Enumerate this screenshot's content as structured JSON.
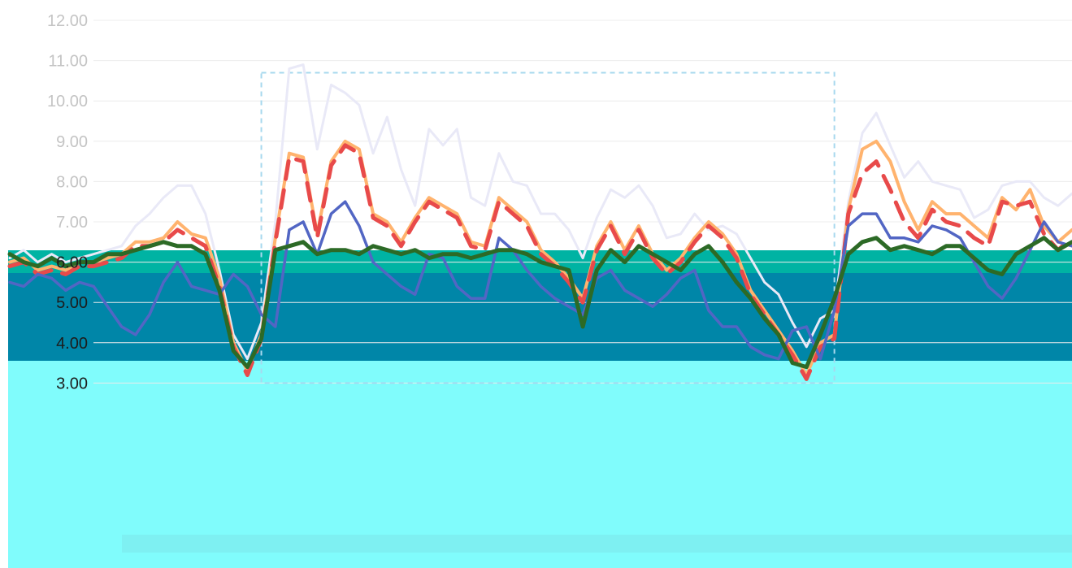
{
  "chart_data": {
    "type": "line",
    "title": "",
    "xlabel": "",
    "ylabel": "",
    "ylim": [
      2.5,
      12.2
    ],
    "yticks": [
      "3.00",
      "4.00",
      "5.00",
      "6.00",
      "7.00",
      "8.00",
      "9.00",
      "10.00",
      "11.00",
      "12.00"
    ],
    "grid": true,
    "legend": "none",
    "highlight_region": {
      "x_start": 18,
      "x_end": 59
    },
    "x": [
      0,
      1,
      2,
      3,
      4,
      5,
      6,
      7,
      8,
      9,
      10,
      11,
      12,
      13,
      14,
      15,
      16,
      17,
      18,
      19,
      20,
      21,
      22,
      23,
      24,
      25,
      26,
      27,
      28,
      29,
      30,
      31,
      32,
      33,
      34,
      35,
      36,
      37,
      38,
      39,
      40,
      41,
      42,
      43,
      44,
      45,
      46,
      47,
      48,
      49,
      50,
      51,
      52,
      53,
      54,
      55,
      56,
      57,
      58,
      59,
      60,
      61,
      62,
      63,
      64,
      65,
      66,
      67,
      68,
      69,
      70,
      71,
      72,
      73,
      74,
      75,
      76
    ],
    "series": [
      {
        "color": "#e9e9f7",
        "width": 3,
        "dash": "",
        "values": [
          6.1,
          6.3,
          6.0,
          6.2,
          6.0,
          6.1,
          6.2,
          6.3,
          6.4,
          6.9,
          7.2,
          7.6,
          7.9,
          7.9,
          7.2,
          5.8,
          4.2,
          3.6,
          4.5,
          7.0,
          10.8,
          10.9,
          8.8,
          10.4,
          10.2,
          9.9,
          8.7,
          9.6,
          8.3,
          7.4,
          9.3,
          8.9,
          9.3,
          7.6,
          7.4,
          8.7,
          8.0,
          7.9,
          7.2,
          7.2,
          6.8,
          6.1,
          7.1,
          7.8,
          7.6,
          7.9,
          7.4,
          6.6,
          6.7,
          7.2,
          6.8,
          6.9,
          6.7,
          6.1,
          5.5,
          5.2,
          4.5,
          3.9,
          4.6,
          4.8,
          7.5,
          9.2,
          9.7,
          8.9,
          8.1,
          8.5,
          8.0,
          7.9,
          7.8,
          7.1,
          7.3,
          7.9,
          8.0,
          8.0,
          7.6,
          7.4,
          7.7
        ]
      },
      {
        "color": "#ffb36e",
        "width": 4,
        "dash": "",
        "values": [
          6.0,
          6.1,
          5.8,
          5.9,
          5.8,
          6.0,
          6.0,
          6.1,
          6.2,
          6.5,
          6.5,
          6.6,
          7.0,
          6.7,
          6.6,
          5.6,
          4.0,
          3.3,
          4.2,
          6.6,
          8.7,
          8.6,
          6.7,
          8.5,
          9.0,
          8.8,
          7.2,
          7.0,
          6.5,
          7.1,
          7.6,
          7.4,
          7.2,
          6.5,
          6.4,
          7.6,
          7.3,
          7.0,
          6.3,
          6.0,
          5.6,
          5.1,
          6.4,
          7.0,
          6.3,
          6.9,
          6.2,
          5.8,
          6.1,
          6.6,
          7.0,
          6.7,
          6.2,
          5.3,
          4.8,
          4.3,
          3.8,
          3.2,
          4.0,
          4.2,
          7.3,
          8.8,
          9.0,
          8.5,
          7.5,
          6.8,
          7.5,
          7.2,
          7.2,
          6.9,
          6.6,
          7.6,
          7.3,
          7.8,
          6.9,
          6.5,
          6.8
        ]
      },
      {
        "color": "#e84a4a",
        "width": 5,
        "dash": "22 14",
        "values": [
          5.9,
          6.0,
          5.7,
          5.8,
          5.7,
          5.9,
          5.9,
          6.0,
          6.1,
          6.4,
          6.4,
          6.5,
          6.8,
          6.6,
          6.4,
          5.4,
          3.9,
          3.2,
          4.1,
          6.5,
          8.6,
          8.5,
          6.6,
          8.4,
          8.9,
          8.7,
          7.1,
          6.9,
          6.4,
          7.0,
          7.5,
          7.3,
          7.1,
          6.4,
          6.3,
          7.5,
          7.2,
          6.9,
          6.2,
          5.9,
          5.5,
          5.0,
          6.3,
          6.9,
          6.2,
          6.8,
          6.1,
          5.7,
          6.0,
          6.5,
          6.9,
          6.6,
          6.1,
          5.2,
          4.7,
          4.2,
          3.7,
          3.1,
          3.9,
          4.1,
          7.2,
          8.2,
          8.5,
          7.8,
          7.0,
          6.6,
          7.3,
          7.0,
          6.9,
          6.6,
          6.4,
          7.5,
          7.4,
          7.5,
          6.7,
          6.3,
          6.6
        ]
      },
      {
        "color": "#5266c4",
        "width": 3.5,
        "dash": "",
        "values": [
          5.5,
          5.4,
          5.7,
          5.6,
          5.3,
          5.5,
          5.4,
          4.9,
          4.4,
          4.2,
          4.7,
          5.5,
          6.0,
          5.4,
          5.3,
          5.2,
          5.7,
          5.4,
          4.7,
          4.4,
          6.8,
          7.0,
          6.2,
          7.2,
          7.5,
          6.9,
          6.0,
          5.7,
          5.4,
          5.2,
          6.2,
          6.1,
          5.4,
          5.1,
          5.1,
          6.6,
          6.3,
          5.8,
          5.4,
          5.1,
          4.9,
          4.7,
          5.6,
          5.8,
          5.3,
          5.1,
          4.9,
          5.2,
          5.6,
          5.8,
          4.8,
          4.4,
          4.4,
          3.9,
          3.7,
          3.6,
          4.3,
          4.4,
          3.6,
          4.8,
          6.9,
          7.2,
          7.2,
          6.6,
          6.6,
          6.5,
          6.9,
          6.8,
          6.6,
          6.0,
          5.4,
          5.1,
          5.6,
          6.3,
          7.0,
          6.5,
          6.4
        ]
      },
      {
        "color": "#2c6a26",
        "width": 5,
        "dash": "",
        "values": [
          6.2,
          6.0,
          5.9,
          6.1,
          5.9,
          6.0,
          6.0,
          6.2,
          6.2,
          6.3,
          6.4,
          6.5,
          6.4,
          6.4,
          6.2,
          5.3,
          3.8,
          3.4,
          4.1,
          6.3,
          6.4,
          6.5,
          6.2,
          6.3,
          6.3,
          6.2,
          6.4,
          6.3,
          6.2,
          6.3,
          6.1,
          6.2,
          6.2,
          6.1,
          6.2,
          6.3,
          6.3,
          6.2,
          6.0,
          5.9,
          5.8,
          4.4,
          5.8,
          6.3,
          6.0,
          6.4,
          6.2,
          6.0,
          5.8,
          6.2,
          6.4,
          6.0,
          5.5,
          5.1,
          4.6,
          4.2,
          3.5,
          3.4,
          4.2,
          5.1,
          6.2,
          6.5,
          6.6,
          6.3,
          6.4,
          6.3,
          6.2,
          6.4,
          6.4,
          6.1,
          5.8,
          5.7,
          6.2,
          6.4,
          6.6,
          6.3,
          6.5
        ]
      }
    ]
  }
}
